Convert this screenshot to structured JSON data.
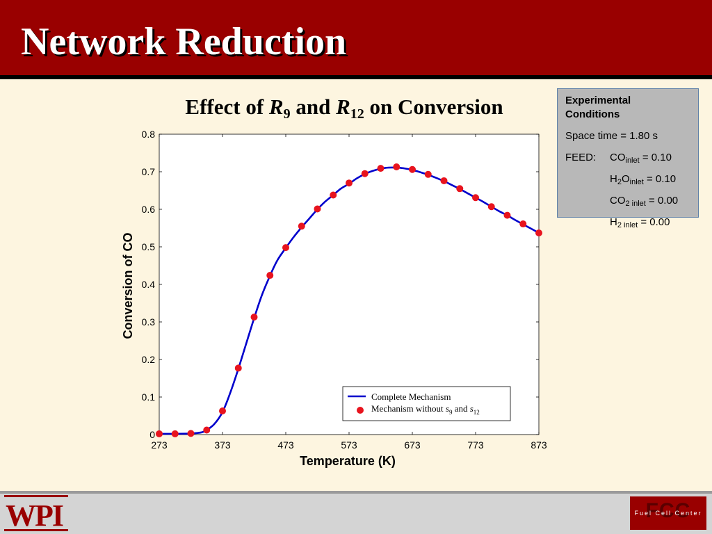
{
  "slide": {
    "title": "Network Reduction"
  },
  "chart_title": {
    "prefix": "Effect of ",
    "r": "R",
    "sub1": "9",
    "mid": " and ",
    "sub2": "12",
    "suffix": " on Conversion"
  },
  "conditions": {
    "header": "Experimental\nConditions",
    "space_time": "Space time = 1.80 s",
    "feed_label": "FEED:",
    "rows": [
      {
        "sp": "CO",
        "sub": "inlet",
        "val": " = 0.10"
      },
      {
        "sp": "H",
        "sp_sub": "2",
        "sp2": "O",
        "sub": "inlet",
        "val": " = 0.10"
      },
      {
        "sp": "CO",
        "sub": "2 inlet",
        "val": " = 0.00"
      },
      {
        "sp": "H",
        "sub": "2 inlet",
        "val": " = 0.00"
      }
    ]
  },
  "chart_data": {
    "type": "line",
    "xlabel": "Temperature (K)",
    "ylabel": "Conversion of CO",
    "xlim": [
      273,
      873
    ],
    "ylim": [
      0,
      0.8
    ],
    "xticks": [
      273,
      373,
      473,
      573,
      673,
      773,
      873
    ],
    "yticks": [
      "0",
      "0.1",
      "0.2",
      "0.3",
      "0.4",
      "0.5",
      "0.6",
      "0.7",
      "0.8"
    ],
    "legend_position": "lower-right",
    "series": [
      {
        "name": "Complete Mechanism",
        "style": "line",
        "color": "#0000cc",
        "x": [
          273,
          298,
          323,
          340,
          348,
          360,
          373,
          385,
          398,
          410,
          423,
          435,
          448,
          460,
          473,
          485,
          498,
          510,
          523,
          535,
          548,
          560,
          573,
          585,
          598,
          610,
          623,
          635,
          648,
          660,
          673,
          685,
          698,
          710,
          723,
          735,
          748,
          760,
          773,
          785,
          798,
          810,
          823,
          835,
          848,
          860,
          873
        ],
        "y": [
          0.002,
          0.002,
          0.003,
          0.006,
          0.012,
          0.028,
          0.06,
          0.11,
          0.175,
          0.24,
          0.31,
          0.37,
          0.423,
          0.465,
          0.497,
          0.525,
          0.552,
          0.575,
          0.6,
          0.62,
          0.638,
          0.655,
          0.668,
          0.682,
          0.694,
          0.702,
          0.708,
          0.711,
          0.711,
          0.709,
          0.705,
          0.699,
          0.692,
          0.684,
          0.675,
          0.665,
          0.654,
          0.643,
          0.631,
          0.62,
          0.607,
          0.595,
          0.584,
          0.572,
          0.56,
          0.549,
          0.537
        ]
      },
      {
        "name": "Mechanism without",
        "style": "markers",
        "color": "#e8141e",
        "x": [
          273,
          298,
          323,
          348,
          373,
          398,
          423,
          448,
          473,
          498,
          523,
          548,
          573,
          598,
          623,
          648,
          673,
          698,
          723,
          748,
          773,
          798,
          823,
          848,
          873
        ],
        "y": [
          0.002,
          0.002,
          0.003,
          0.012,
          0.063,
          0.177,
          0.313,
          0.424,
          0.498,
          0.555,
          0.601,
          0.638,
          0.67,
          0.695,
          0.709,
          0.713,
          0.706,
          0.693,
          0.676,
          0.655,
          0.631,
          0.607,
          0.584,
          0.561,
          0.537
        ]
      }
    ],
    "legend": {
      "line_label": "Complete Mechanism",
      "marker_label_prefix": "Mechanism without ",
      "s": "s",
      "sub1": "9",
      "mid": " and ",
      "sub2": "12"
    }
  },
  "footer": {
    "left_logo": "WPI",
    "right_logo": "FCC",
    "right_logo_sub": "Fuel Cell Center"
  }
}
